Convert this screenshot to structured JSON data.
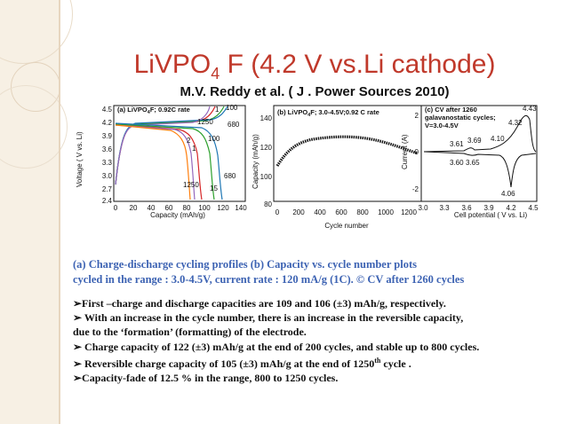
{
  "slide": {
    "title_main": "LiVPO",
    "title_sub": "4",
    "title_rest": " F (4.2 V vs.Li cathode)",
    "subtitle": "M.V. Reddy et al. ( J . Power Sources 2010)"
  },
  "panel_a": {
    "label": "(a) LiVPO",
    "label_sub": "4",
    "label_rest": "F; 0.92C rate",
    "ylabel": "Voltage ( V vs. Li)",
    "xlabel": "Capacity (mAh/g)",
    "xticks": [
      "0",
      "20",
      "40",
      "60",
      "80",
      "100",
      "120",
      "140"
    ],
    "yticks": [
      "4.5",
      "4.2",
      "3.9",
      "3.6",
      "3.3",
      "3.0",
      "2.7",
      "2.4"
    ],
    "annotations": [
      "1",
      "100",
      "1250",
      "680",
      "2",
      "100",
      "1",
      "680",
      "1250",
      "15"
    ]
  },
  "panel_b": {
    "label": "(b) LiVPO",
    "label_sub": "4",
    "label_rest": "F; 3.0-4.5V;0.92 C rate",
    "ylabel": "Capacity (mAh/g)",
    "xlabel": "Cycle number",
    "xticks": [
      "0",
      "200",
      "400",
      "600",
      "800",
      "1000",
      "1200"
    ],
    "yticks": [
      "140",
      "120",
      "100",
      "80"
    ]
  },
  "panel_c": {
    "label_lines": [
      "(c) CV after 1260",
      "galavanostatic cycles;",
      "V=3.0-4.5V"
    ],
    "ylabel": "Current (A)",
    "xlabel": "Cell potential ( V vs. Li)",
    "xticks": [
      "3.0",
      "3.3",
      "3.6",
      "3.9",
      "4.2",
      "4.5"
    ],
    "yticks": [
      "2",
      "0",
      "-2"
    ],
    "peaks": [
      "4.43",
      "4.32",
      "3.61",
      "3.69",
      "4.10",
      "3.60",
      "3.65",
      "4.06"
    ]
  },
  "caption": {
    "line1": "(a)   Charge-discharge cycling profiles (b) Capacity vs. cycle number plots",
    "line2": "cycled in the range : 3.0-4.5V, current rate : 120 mA/g (1C). © CV after 1260 cycles"
  },
  "bullets": {
    "b1": "➢First –charge and discharge capacities are 109 and 106 (±3) mAh/g, respectively.",
    "b2": "➢ With an increase in the cycle number, there is an increase in the reversible capacity,",
    "b2b": "due to the ‘formation’ (formatting) of the electrode.",
    "b3": "➢ Charge capacity of 122 (±3) mAh/g at the end of 200 cycles, and stable up to 800 cycles.",
    "b4_pre": "➢ Reversible charge capacity  of 105 (±3) mAh/g at the end of 1250",
    "b4_sup": "th",
    "b4_post": " cycle .",
    "b5": "➢Capacity-fade of 12.5 % in the range, 800 to 1250 cycles."
  },
  "colors": {
    "title": "#c0392b",
    "caption": "#3d63b3",
    "band": "#f7f0e4"
  }
}
